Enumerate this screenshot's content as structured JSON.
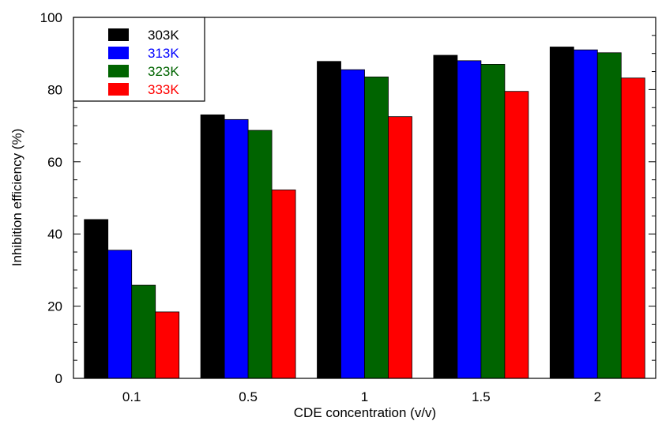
{
  "chart_data": {
    "type": "bar",
    "categories": [
      "0.1",
      "0.5",
      "1",
      "1.5",
      "2"
    ],
    "series": [
      {
        "name": "303K",
        "color": "#000000",
        "values": [
          44.0,
          73.0,
          87.8,
          89.5,
          91.8
        ]
      },
      {
        "name": "313K",
        "color": "#0000ff",
        "values": [
          35.5,
          71.7,
          85.5,
          88.0,
          91.0
        ]
      },
      {
        "name": "323K",
        "color": "#006400",
        "values": [
          25.8,
          68.7,
          83.5,
          87.0,
          90.2
        ]
      },
      {
        "name": "333K",
        "color": "#ff0000",
        "values": [
          18.4,
          52.2,
          72.5,
          79.5,
          83.2
        ]
      }
    ],
    "title": "",
    "xlabel": "CDE concentration (v/v)",
    "ylabel": "Inhibition efficiency (%)",
    "ylim": [
      0,
      100
    ],
    "yticks": [
      "0",
      "20",
      "40",
      "60",
      "80",
      "100"
    ],
    "grid": false,
    "legend_position": "top-left"
  }
}
